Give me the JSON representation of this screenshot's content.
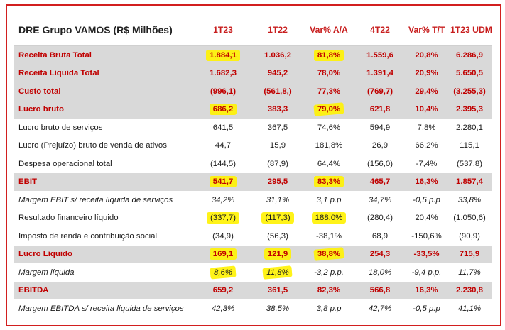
{
  "table": {
    "title": "DRE Grupo VAMOS (R$ Milhões)",
    "columns": [
      "1T23",
      "1T22",
      "Var% A/A",
      "4T22",
      "Var% T/T",
      "1T23 UDM"
    ],
    "rows": [
      {
        "label": "Receita Bruta Total",
        "values": [
          "1.884,1",
          "1.036,2",
          "81,8%",
          "1.559,6",
          "20,8%",
          "6.286,9"
        ]
      },
      {
        "label": "Receita Líquida Total",
        "values": [
          "1.682,3",
          "945,2",
          "78,0%",
          "1.391,4",
          "20,9%",
          "5.650,5"
        ]
      },
      {
        "label": "Custo total",
        "values": [
          "(996,1)",
          "(561,8,)",
          "77,3%",
          "(769,7)",
          "29,4%",
          "(3.255,3)"
        ]
      },
      {
        "label": "Lucro bruto",
        "values": [
          "686,2",
          "383,3",
          "79,0%",
          "621,8",
          "10,4%",
          "2.395,3"
        ]
      },
      {
        "label": "Lucro bruto de serviços",
        "values": [
          "641,5",
          "367,5",
          "74,6%",
          "594,9",
          "7,8%",
          "2.280,1"
        ]
      },
      {
        "label": "Lucro (Prejuízo) bruto de venda de ativos",
        "values": [
          "44,7",
          "15,9",
          "181,8%",
          "26,9",
          "66,2%",
          "115,1"
        ]
      },
      {
        "label": "Despesa operacional total",
        "values": [
          "(144,5)",
          "(87,9)",
          "64,4%",
          "(156,0)",
          "-7,4%",
          "(537,8)"
        ]
      },
      {
        "label": "EBIT",
        "values": [
          "541,7",
          "295,5",
          "83,3%",
          "465,7",
          "16,3%",
          "1.857,4"
        ]
      },
      {
        "label": "Margem EBIT s/ receita líquida de serviços",
        "values": [
          "34,2%",
          "31,1%",
          "3,1 p.p",
          "34,7%",
          "-0,5 p.p",
          "33,8%"
        ]
      },
      {
        "label": "Resultado financeiro líquido",
        "values": [
          "(337,7)",
          "(117,3)",
          "188,0%",
          "(280,4)",
          "20,4%",
          "(1.050,6)"
        ]
      },
      {
        "label": "Imposto de renda e contribuição social",
        "values": [
          "(34,9)",
          "(56,3)",
          "-38,1%",
          "68,9",
          "-150,6%",
          "(90,9)"
        ]
      },
      {
        "label": "Lucro Líquido",
        "values": [
          "169,1",
          "121,9",
          "38,8%",
          "254,3",
          "-33,5%",
          "715,9"
        ]
      },
      {
        "label": "Margem líquida",
        "values": [
          "8,6%",
          "11,8%",
          "-3,2 p.p.",
          "18,0%",
          "-9,4 p.p.",
          "11,7%"
        ]
      },
      {
        "label": "EBITDA",
        "values": [
          "659,2",
          "361,5",
          "82,3%",
          "566,8",
          "16,3%",
          "2.230,8"
        ]
      },
      {
        "label": "Margem EBITDA s/ receita líquida de serviços",
        "values": [
          "42,3%",
          "38,5%",
          "3,8 p.p",
          "42,7%",
          "-0,5 p.p",
          "41,1%"
        ]
      }
    ]
  },
  "colors": {
    "accent_red": "#c00000",
    "highlight_row_bg": "#d9d9d9",
    "marker_yellow": "#fff200",
    "frame_border": "#d21f1f"
  }
}
